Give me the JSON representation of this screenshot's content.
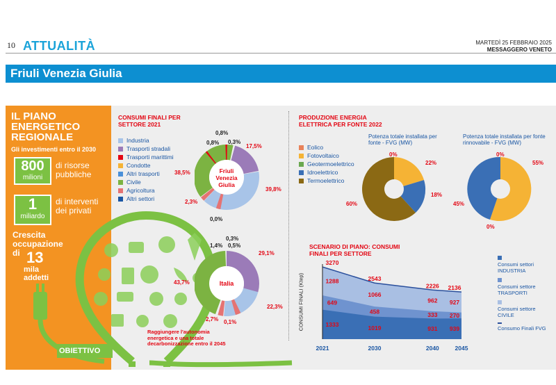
{
  "header": {
    "page_number": "10",
    "section": "ATTUALITÀ",
    "date": "MARTEDÌ 25 FEBBRAIO 2025",
    "newspaper": "MESSAGGERO VENETO"
  },
  "region_bar": "Friuli Venezia Giulia",
  "left_panel": {
    "title": "IL PIANO ENERGETICO REGIONALE",
    "subtitle": "Gli investimenti entro il 2030",
    "box1_number": "800",
    "box1_unit": "milioni",
    "box1_text": "di risorse pubbliche",
    "box2_number": "1",
    "box2_unit": "miliardo",
    "box2_text": "di interventi dei privati",
    "growth_text": "Crescita occupazione di",
    "growth_number": "13",
    "growth_unit": "mila addetti",
    "objective_label": "OBIETTIVO",
    "objective_text": "Raggiungere l'autonomia energetica e una totale decarbonizzazione entro il 2045"
  },
  "consumi_title": "CONSUMI FINALI PER SETTORE 2021",
  "consumi_legend": [
    {
      "label": "Industria",
      "color": "#a8c4e8"
    },
    {
      "label": "Trasporti stradali",
      "color": "#9b7bb8"
    },
    {
      "label": "Trasporti marittimi",
      "color": "#e30613"
    },
    {
      "label": "Condotte",
      "color": "#f5b335"
    },
    {
      "label": "Altri trasporti",
      "color": "#4a90d9"
    },
    {
      "label": "Civile",
      "color": "#7cb342"
    },
    {
      "label": "Agricoltura",
      "color": "#e57373"
    },
    {
      "label": "Altri settori",
      "color": "#1a56a3"
    }
  ],
  "pie_fvg": {
    "center_label": "Friuli Venezia Giulia",
    "labels": [
      "0,8%",
      "0,3%",
      "17,5%",
      "39,8%",
      "0,0%",
      "2,3%",
      "38,5%",
      "0,8%"
    ]
  },
  "pie_italia": {
    "center_label": "Italia",
    "labels": [
      "0,3%",
      "1,4%",
      "0,5%",
      "29,1%",
      "22,3%",
      "0,1%",
      "2,7%",
      "43,7%"
    ]
  },
  "produzione_title": "PRODUZIONE ENERGIA ELETTRICA PER FONTE 2022",
  "produzione_legend": [
    {
      "label": "Eolico",
      "color": "#e8825a"
    },
    {
      "label": "Fotovoltaico",
      "color": "#f5b335"
    },
    {
      "label": "Geotermoelettrico",
      "color": "#6aa84f"
    },
    {
      "label": "Idroelettrico",
      "color": "#3a6fb5"
    },
    {
      "label": "Termoelettrico",
      "color": "#8b6914"
    }
  ],
  "pie_totale": {
    "caption": "Potenza totale installata per fonte - FVG (MW)",
    "labels": [
      "0%",
      "22%",
      "18%",
      "60%"
    ]
  },
  "pie_rinnovabile": {
    "caption": "Potenza totale installata per fonte rinnovabile - FVG (MW)",
    "labels": [
      "0%",
      "55%",
      "45%",
      "0%"
    ]
  },
  "scenario_title": "SCENARIO DI PIANO: CONSUMI FINALI PER SETTORE",
  "y_axis_label": "CONSUMI FINALI (Ktep)",
  "chart_data": {
    "type": "area",
    "title": "SCENARIO DI PIANO: CONSUMI FINALI PER SETTORE",
    "ylabel": "CONSUMI FINALI (Ktep)",
    "categories": [
      "2021",
      "2030",
      "2040",
      "2045"
    ],
    "series": [
      {
        "name": "Consumi settori INDUSTRIA",
        "values": [
          1333,
          1019,
          931,
          939
        ],
        "color": "#3a6fb5"
      },
      {
        "name": "Consumi settore TRASPORTI",
        "values": [
          649,
          458,
          333,
          270
        ],
        "color": "#6f93cf"
      },
      {
        "name": "Consumi settore CIVILE",
        "values": [
          1288,
          1066,
          962,
          927
        ],
        "color": "#a9bfe3"
      },
      {
        "name": "Consumo Finali FVG",
        "values": [
          3270,
          2543,
          2226,
          2136
        ],
        "color": "#2a4f9c"
      }
    ],
    "ylim": [
      0,
      3400
    ]
  }
}
